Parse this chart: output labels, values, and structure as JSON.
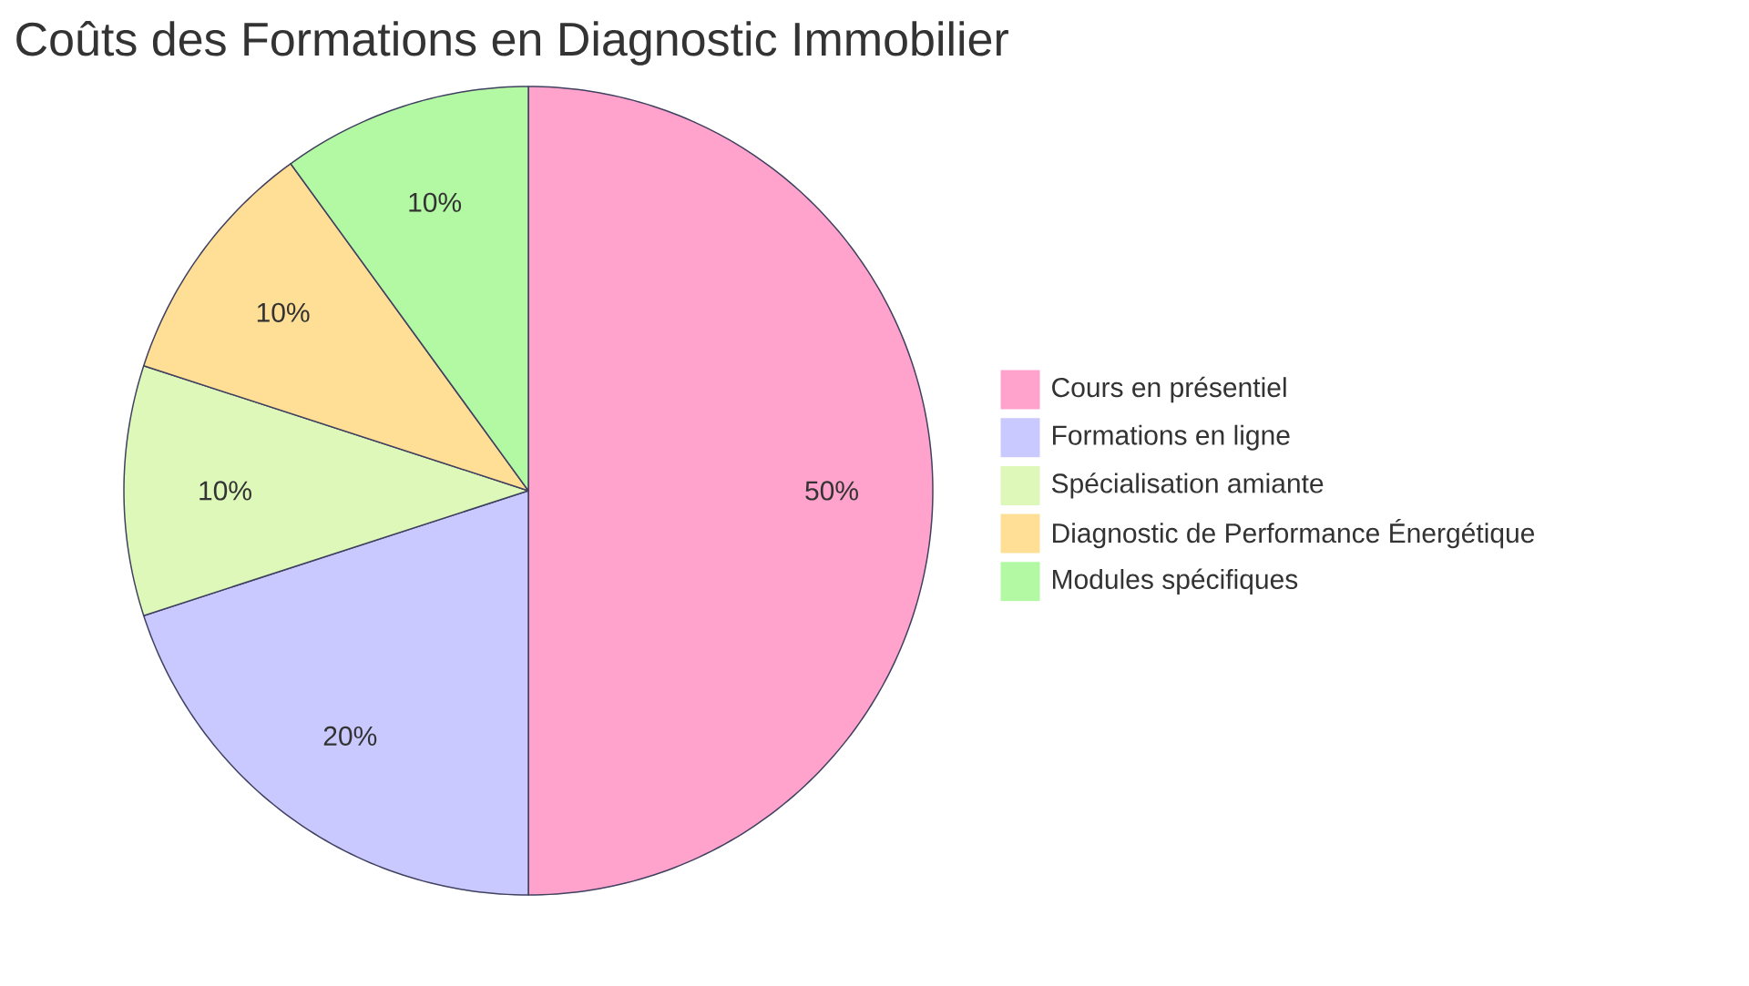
{
  "chart_data": {
    "type": "pie",
    "title": "Coûts des Formations en Diagnostic Immobilier",
    "categories": [
      "Cours en présentiel",
      "Formations en ligne",
      "Spécialisation amiante",
      "Diagnostic de Performance Énergétique",
      "Modules spécifiques"
    ],
    "values": [
      50,
      20,
      10,
      10,
      10
    ],
    "value_labels": [
      "50%",
      "20%",
      "10%",
      "10%",
      "10%"
    ],
    "colors": [
      "#ffa3cc",
      "#c9c9ff",
      "#ddf8b8",
      "#ffde95",
      "#b3f8a3"
    ],
    "legend": "right"
  }
}
